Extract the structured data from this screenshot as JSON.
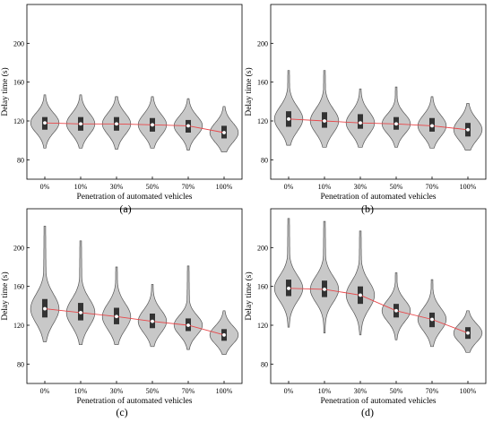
{
  "figure": {
    "panels": [
      {
        "label": "(a)",
        "xlabel": "Penetration of automated vehicles",
        "ylabel": "Delay time (s)"
      },
      {
        "label": "(b)",
        "xlabel": "Penetration of automated vehicles",
        "ylabel": "Delay time (s)"
      },
      {
        "label": "(c)",
        "xlabel": "Penetration of automated vehicles",
        "ylabel": "Delay time (s)"
      },
      {
        "label": "(d)",
        "xlabel": "Penetration of automated vehicles",
        "ylabel": "Delay time (s)"
      }
    ]
  },
  "colors": {
    "violin_fill": "#c8c8c8",
    "violin_stroke": "#555555",
    "box": "#333333",
    "median_dot": "#ffffff",
    "trend_line": "#e8474a"
  },
  "chart_data": [
    {
      "type": "violin",
      "title": "(a)",
      "xlabel": "Penetration of automated vehicles",
      "ylabel": "Delay time (s)",
      "categories": [
        "0%",
        "10%",
        "30%",
        "50%",
        "70%",
        "100%"
      ],
      "ylim": [
        60,
        240
      ],
      "yticks": [
        80,
        120,
        160,
        200
      ],
      "medians": [
        118,
        117,
        117,
        116,
        115,
        108
      ],
      "q1": [
        111,
        110,
        110,
        109,
        108,
        102
      ],
      "q3": [
        124,
        124,
        124,
        123,
        121,
        115
      ],
      "mins": [
        92,
        92,
        91,
        92,
        90,
        88
      ],
      "maxs": [
        147,
        147,
        145,
        145,
        143,
        135
      ],
      "trend": "median"
    },
    {
      "type": "violin",
      "title": "(b)",
      "xlabel": "Penetration of automated vehicles",
      "ylabel": "Delay time (s)",
      "categories": [
        "0%",
        "10%",
        "30%",
        "50%",
        "70%",
        "100%"
      ],
      "ylim": [
        60,
        240
      ],
      "yticks": [
        80,
        120,
        160,
        200
      ],
      "medians": [
        122,
        120,
        118,
        117,
        115,
        111
      ],
      "q1": [
        114,
        113,
        112,
        111,
        109,
        104
      ],
      "q3": [
        130,
        129,
        127,
        124,
        123,
        118
      ],
      "mins": [
        95,
        93,
        93,
        93,
        92,
        90
      ],
      "maxs": [
        172,
        172,
        153,
        155,
        145,
        138
      ],
      "trend": "median"
    },
    {
      "type": "violin",
      "title": "(c)",
      "xlabel": "Penetration of automated vehicles",
      "ylabel": "Delay time (s)",
      "categories": [
        "0%",
        "10%",
        "30%",
        "50%",
        "70%",
        "100%"
      ],
      "ylim": [
        60,
        240
      ],
      "yticks": [
        80,
        120,
        160,
        200
      ],
      "medians": [
        137,
        133,
        129,
        124,
        120,
        110
      ],
      "q1": [
        128,
        125,
        121,
        117,
        114,
        104
      ],
      "q3": [
        147,
        143,
        138,
        132,
        127,
        116
      ],
      "mins": [
        103,
        100,
        100,
        98,
        95,
        90
      ],
      "maxs": [
        222,
        207,
        180,
        162,
        181,
        135
      ],
      "trend": "median"
    },
    {
      "type": "violin",
      "title": "(d)",
      "xlabel": "Penetration of automated vehicles",
      "ylabel": "Delay time (s)",
      "categories": [
        "0%",
        "10%",
        "30%",
        "50%",
        "70%",
        "100%"
      ],
      "ylim": [
        60,
        240
      ],
      "yticks": [
        80,
        120,
        160,
        200
      ],
      "medians": [
        158,
        157,
        151,
        135,
        126,
        112
      ],
      "q1": [
        150,
        149,
        142,
        128,
        118,
        106
      ],
      "q3": [
        167,
        166,
        160,
        142,
        133,
        118
      ],
      "mins": [
        118,
        112,
        110,
        105,
        98,
        92
      ],
      "maxs": [
        230,
        227,
        217,
        174,
        167,
        135
      ],
      "trend": "median"
    }
  ]
}
